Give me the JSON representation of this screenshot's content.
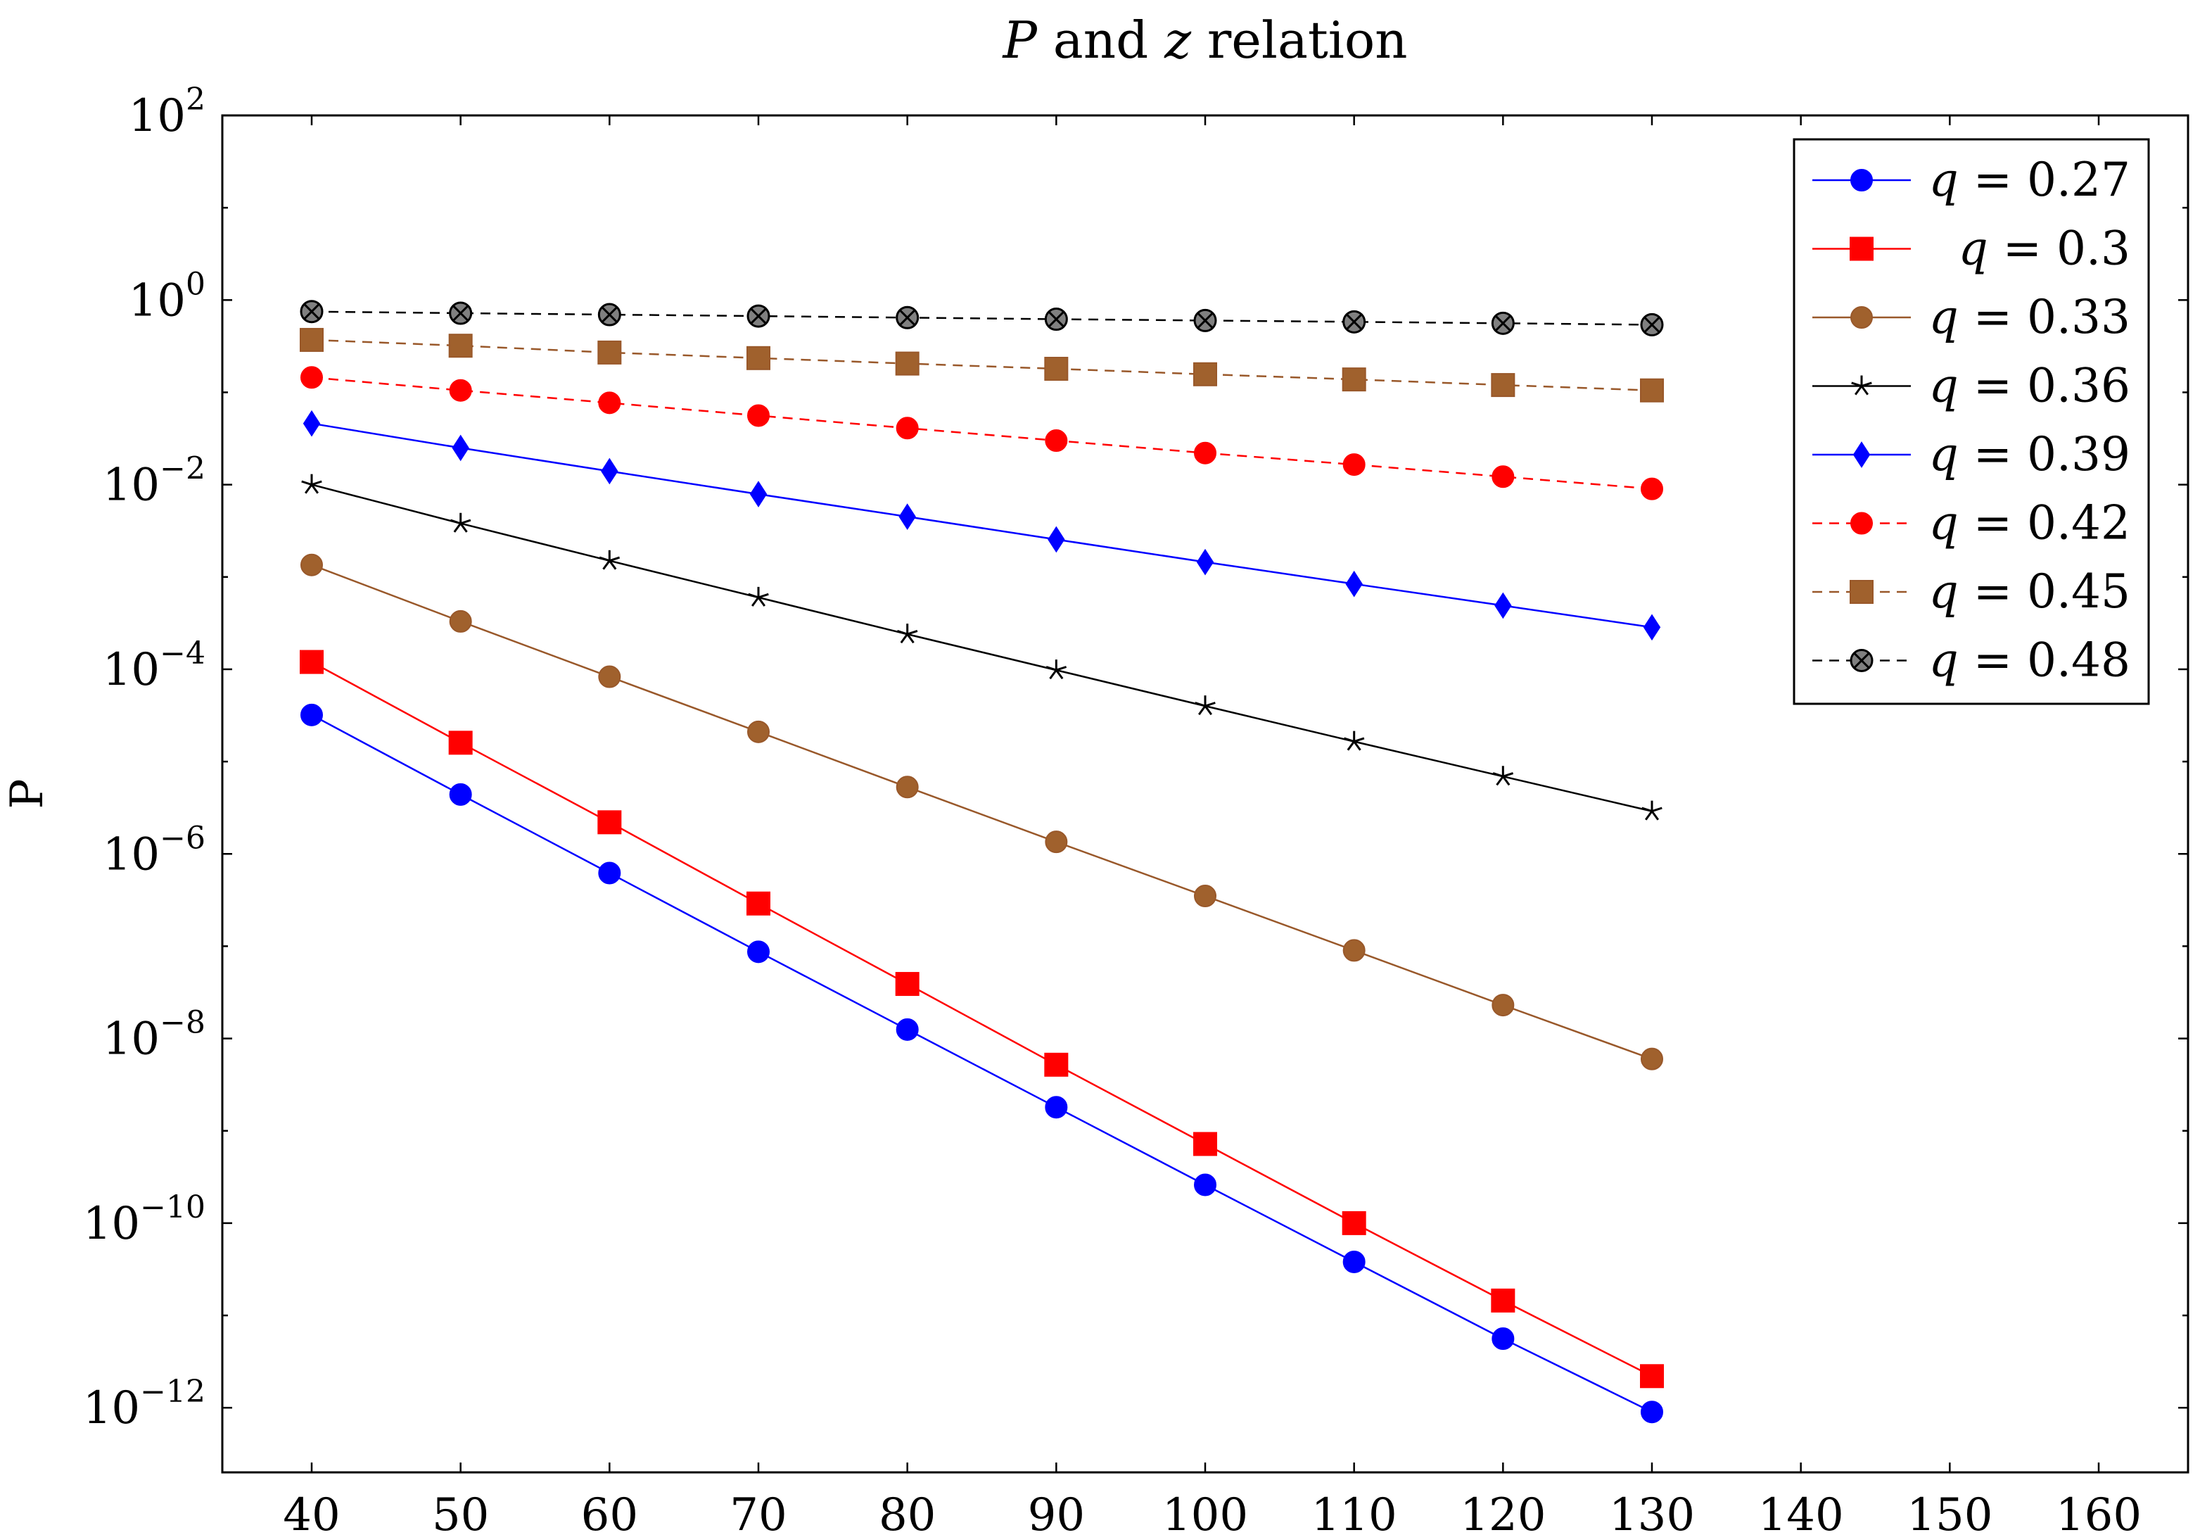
{
  "chart_data": {
    "type": "line",
    "title": "P and z relation",
    "title_parts": [
      {
        "text": "P",
        "italic": true
      },
      {
        "text": " and ",
        "italic": false
      },
      {
        "text": "z",
        "italic": true
      },
      {
        "text": " relation",
        "italic": false
      }
    ],
    "xlabel": "",
    "ylabel": "P",
    "yscale": "log",
    "xlim": [
      34,
      166
    ],
    "ylim_exponent": [
      -12.7,
      2.0
    ],
    "x_ticks": [
      40,
      50,
      60,
      70,
      80,
      90,
      100,
      110,
      120,
      130,
      140,
      150,
      160
    ],
    "x_tick_labels": [
      "40",
      "50",
      "60",
      "70",
      "80",
      "90",
      "100",
      "110",
      "120",
      "130",
      "140",
      "150",
      "160"
    ],
    "y_tick_exponents": [
      2,
      0,
      -2,
      -4,
      -6,
      -8,
      -10,
      -12
    ],
    "y_tick_labels": [
      {
        "base": "10",
        "exp": "2"
      },
      {
        "base": "10",
        "exp": "0"
      },
      {
        "base": "10",
        "exp": "−2"
      },
      {
        "base": "10",
        "exp": "−4"
      },
      {
        "base": "10",
        "exp": "−6"
      },
      {
        "base": "10",
        "exp": "−8"
      },
      {
        "base": "10",
        "exp": "−10"
      },
      {
        "base": "10",
        "exp": "−12"
      }
    ],
    "grid": false,
    "legend_position": "top-right",
    "x": [
      40,
      50,
      60,
      70,
      80,
      90,
      100,
      110,
      120,
      130
    ],
    "series": [
      {
        "name": "q = 0.27",
        "var": "q",
        "value_text": " = 0.27",
        "color": "#0000ff",
        "dash": "solid",
        "marker": "circle",
        "values": [
          3.2e-05,
          4.4e-06,
          6.2e-07,
          8.7e-08,
          1.25e-08,
          1.8e-09,
          2.6e-10,
          3.8e-11,
          5.6e-12,
          9e-13
        ]
      },
      {
        "name": "q = 0.3",
        "var": "q",
        "value_text": " = 0.3",
        "color": "#ff0000",
        "dash": "solid",
        "marker": "square",
        "values": [
          0.00012,
          1.6e-05,
          2.2e-06,
          2.9e-07,
          3.9e-08,
          5.2e-09,
          7.2e-10,
          1e-10,
          1.45e-11,
          2.2e-12
        ]
      },
      {
        "name": "q = 0.33",
        "var": "q",
        "value_text": " = 0.33",
        "color": "#99582a",
        "fill": "#a0612d",
        "dash": "solid",
        "marker": "circle",
        "values": [
          0.00135,
          0.00033,
          8.3e-05,
          2.1e-05,
          5.3e-06,
          1.35e-06,
          3.5e-07,
          9e-08,
          2.3e-08,
          6e-09
        ]
      },
      {
        "name": "q = 0.36",
        "var": "q",
        "value_text": " = 0.36",
        "color": "#000000",
        "dash": "solid",
        "marker": "star",
        "values": [
          0.01,
          0.0038,
          0.0015,
          0.0006,
          0.00024,
          9.8e-05,
          4e-05,
          1.65e-05,
          6.9e-06,
          2.9e-06
        ]
      },
      {
        "name": "q = 0.39",
        "var": "q",
        "value_text": " = 0.39",
        "color": "#0000ff",
        "dash": "solid",
        "marker": "diamond",
        "values": [
          0.046,
          0.025,
          0.014,
          0.0079,
          0.0045,
          0.00255,
          0.00145,
          0.00084,
          0.00049,
          0.000285
        ]
      },
      {
        "name": "q = 0.42",
        "var": "q",
        "value_text": " = 0.42",
        "color": "#ff0000",
        "dash": "dashed",
        "marker": "circle",
        "values": [
          0.145,
          0.105,
          0.077,
          0.056,
          0.041,
          0.03,
          0.022,
          0.0165,
          0.0122,
          0.009
        ]
      },
      {
        "name": "q = 0.45",
        "var": "q",
        "value_text": " = 0.45",
        "color": "#99582a",
        "fill": "#a0612d",
        "dash": "dashed",
        "marker": "square",
        "values": [
          0.37,
          0.32,
          0.27,
          0.235,
          0.205,
          0.18,
          0.157,
          0.138,
          0.12,
          0.105
        ]
      },
      {
        "name": "q = 0.48",
        "var": "q",
        "value_text": " = 0.48",
        "color": "#000000",
        "fill": "#808080",
        "dash": "dashed",
        "marker": "otimes",
        "values": [
          0.75,
          0.72,
          0.695,
          0.67,
          0.645,
          0.62,
          0.6,
          0.58,
          0.56,
          0.54
        ]
      }
    ]
  }
}
